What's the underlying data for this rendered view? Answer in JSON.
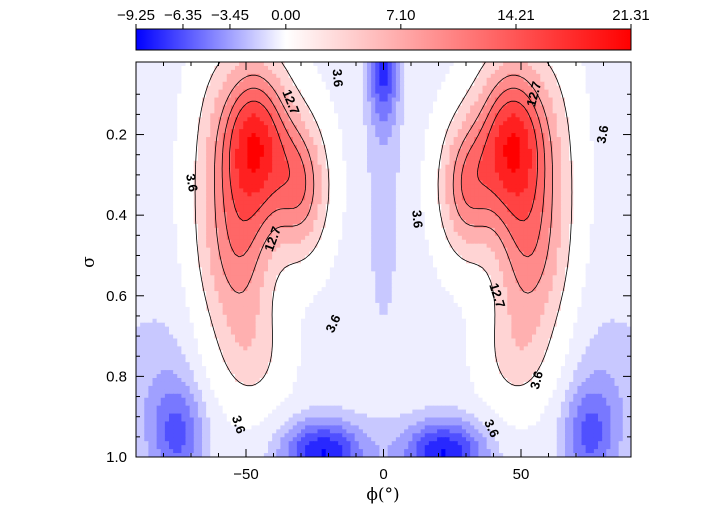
{
  "chart_data": {
    "type": "heatmap",
    "xlabel": "ϕ(°)",
    "ylabel": "σ",
    "xlim": [
      -90,
      90
    ],
    "ylim": [
      1.0,
      0.02
    ],
    "x_ticks": [
      -50,
      0,
      50
    ],
    "x_tick_labels": [
      "−50",
      "0",
      "50"
    ],
    "y_ticks": [
      0.2,
      0.4,
      0.6,
      0.8,
      1.0
    ],
    "y_tick_labels": [
      "0.2",
      "0.4",
      "0.6",
      "0.8",
      "1.0"
    ],
    "colorbar": {
      "ticks": [
        -9.25,
        -6.35,
        -3.45,
        0.0,
        7.1,
        14.21,
        21.31
      ],
      "tick_labels": [
        "−9.25",
        "−6.35",
        "−3.45",
        "0.00",
        "7.10",
        "14.21",
        "21.31"
      ],
      "negative_color": "#0000ff",
      "zero_color": "#ffffff",
      "positive_color": "#ff0000"
    },
    "contour_levels": [
      3.6,
      12.7
    ],
    "contour_labels": [
      {
        "text": "12.7",
        "x": -34,
        "y": 0.12,
        "rot": 68
      },
      {
        "text": "3.6",
        "x": -17,
        "y": 0.06,
        "rot": 85
      },
      {
        "text": "3.6",
        "x": -70,
        "y": 0.32,
        "rot": 80
      },
      {
        "text": "12.7",
        "x": -40,
        "y": 0.46,
        "rot": -70
      },
      {
        "text": "3.6",
        "x": -18,
        "y": 0.67,
        "rot": -65
      },
      {
        "text": "3.6",
        "x": -53,
        "y": 0.92,
        "rot": 72
      },
      {
        "text": "12.7",
        "x": 55,
        "y": 0.1,
        "rot": -75
      },
      {
        "text": "3.6",
        "x": 80,
        "y": 0.2,
        "rot": -80
      },
      {
        "text": "3.6",
        "x": 12,
        "y": 0.41,
        "rot": 85
      },
      {
        "text": "12.7",
        "x": 41,
        "y": 0.6,
        "rot": 72
      },
      {
        "text": "3.6",
        "x": 56,
        "y": 0.81,
        "rot": -75
      },
      {
        "text": "3.6",
        "x": 39,
        "y": 0.93,
        "rot": 65
      }
    ],
    "field_components": [
      {
        "amp": 21,
        "x0": -47,
        "y0": 0.22,
        "sx": 9,
        "sy": 0.14
      },
      {
        "amp": 12,
        "x0": -30,
        "y0": 0.33,
        "sx": 7,
        "sy": 0.12
      },
      {
        "amp": 10,
        "x0": -52,
        "y0": 0.5,
        "sx": 8,
        "sy": 0.14
      },
      {
        "amp": 5,
        "x0": -48,
        "y0": 0.75,
        "sx": 9,
        "sy": 0.1
      },
      {
        "amp": 4,
        "x0": -63,
        "y0": 0.35,
        "sx": 7,
        "sy": 0.25
      },
      {
        "amp": 21,
        "x0": 47,
        "y0": 0.22,
        "sx": 9,
        "sy": 0.14
      },
      {
        "amp": 12,
        "x0": 30,
        "y0": 0.33,
        "sx": 7,
        "sy": 0.12
      },
      {
        "amp": 10,
        "x0": 52,
        "y0": 0.5,
        "sx": 8,
        "sy": 0.14
      },
      {
        "amp": 5,
        "x0": 48,
        "y0": 0.75,
        "sx": 9,
        "sy": 0.1
      },
      {
        "amp": 4,
        "x0": 63,
        "y0": 0.35,
        "sx": 7,
        "sy": 0.25
      },
      {
        "amp": -6.5,
        "x0": 0,
        "y0": 0.02,
        "sx": 4,
        "sy": 0.1
      },
      {
        "amp": -2,
        "x0": 0,
        "y0": 0.3,
        "sx": 5,
        "sy": 0.35
      },
      {
        "amp": -8.5,
        "x0": -22,
        "y0": 0.99,
        "sx": 11,
        "sy": 0.06
      },
      {
        "amp": -8.5,
        "x0": 22,
        "y0": 0.99,
        "sx": 11,
        "sy": 0.06
      },
      {
        "amp": -5,
        "x0": -75,
        "y0": 0.95,
        "sx": 7,
        "sy": 0.09
      },
      {
        "amp": -5,
        "x0": 75,
        "y0": 0.95,
        "sx": 7,
        "sy": 0.09
      },
      {
        "amp": -2,
        "x0": -82,
        "y0": 0.82,
        "sx": 14,
        "sy": 0.16
      },
      {
        "amp": -2,
        "x0": 82,
        "y0": 0.82,
        "sx": 14,
        "sy": 0.16
      }
    ],
    "background_value": -0.8,
    "grid": false
  }
}
